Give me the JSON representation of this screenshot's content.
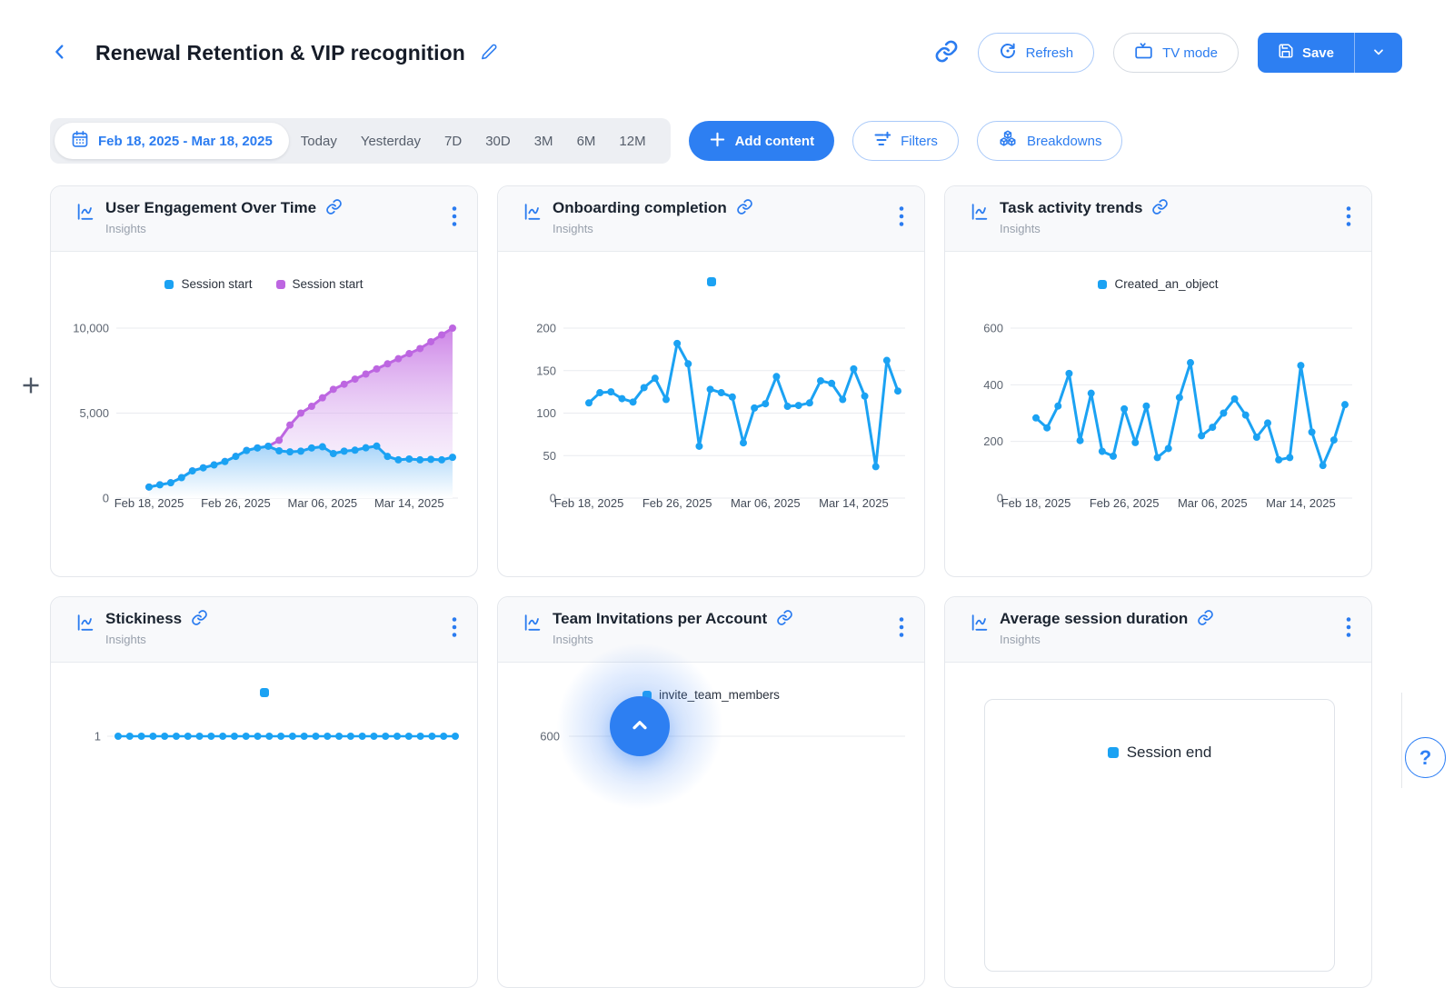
{
  "header": {
    "title": "Renewal Retention & VIP recognition",
    "refresh": "Refresh",
    "tv_mode": "TV mode",
    "save": "Save"
  },
  "toolbar": {
    "date_range": "Feb 18, 2025 - Mar 18, 2025",
    "presets": [
      "Today",
      "Yesterday",
      "7D",
      "30D",
      "3M",
      "6M",
      "12M"
    ],
    "add_content": "Add content",
    "filters": "Filters",
    "breakdowns": "Breakdowns"
  },
  "help": {
    "label": "?"
  },
  "colors": {
    "accent": "#2D7FF2",
    "chart_blue": "#1BA2F3",
    "chart_purple": "#BD66E1"
  },
  "cards": [
    {
      "title": "User Engagement Over Time",
      "subtitle": "Insights"
    },
    {
      "title": "Onboarding completion",
      "subtitle": "Insights"
    },
    {
      "title": "Task activity trends",
      "subtitle": "Insights"
    },
    {
      "title": "Stickiness",
      "subtitle": "Insights"
    },
    {
      "title": "Team Invitations per Account",
      "subtitle": "Insights"
    },
    {
      "title": "Average session duration",
      "subtitle": "Insights"
    }
  ],
  "chart_data": [
    {
      "type": "area",
      "title": "User Engagement Over Time",
      "n_points": 29,
      "x_tick_labels": [
        "Feb 18, 2025",
        "Feb 26, 2025",
        "Mar 06, 2025",
        "Mar 14, 2025"
      ],
      "x_tick_indices": [
        0,
        8,
        16,
        24
      ],
      "ylim": [
        0,
        10000
      ],
      "yticks": [
        {
          "v": 0,
          "label": "0"
        },
        {
          "v": 5000,
          "label": "5,000"
        },
        {
          "v": 10000,
          "label": "10,000"
        }
      ],
      "legend": [
        {
          "label": "Session start",
          "color": "#1BA2F3"
        },
        {
          "label": "Session start",
          "color": "#BD66E1"
        }
      ],
      "series": [
        {
          "name": "Session start",
          "color": "#BD66E1",
          "fill": "purple",
          "values": [
            650,
            780,
            900,
            1200,
            1600,
            1780,
            1950,
            2150,
            2450,
            2800,
            2950,
            3050,
            3400,
            4300,
            5000,
            5400,
            5900,
            6400,
            6700,
            7000,
            7300,
            7600,
            7900,
            8200,
            8500,
            8800,
            9200,
            9600,
            10000
          ]
        },
        {
          "name": "Session start",
          "color": "#1BA2F3",
          "fill": "blue",
          "values": [
            650,
            780,
            900,
            1200,
            1600,
            1780,
            1950,
            2150,
            2450,
            2800,
            2950,
            3050,
            2780,
            2720,
            2760,
            2950,
            3020,
            2620,
            2760,
            2820,
            2960,
            3060,
            2450,
            2250,
            2300,
            2250,
            2280,
            2250,
            2400
          ]
        }
      ]
    },
    {
      "type": "line",
      "title": "Onboarding completion",
      "n_points": 29,
      "x_tick_labels": [
        "Feb 18, 2025",
        "Feb 26, 2025",
        "Mar 06, 2025",
        "Mar 14, 2025"
      ],
      "x_tick_indices": [
        0,
        8,
        16,
        24
      ],
      "ylim": [
        0,
        200
      ],
      "yticks": [
        {
          "v": 0,
          "label": "0"
        },
        {
          "v": 50,
          "label": "50"
        },
        {
          "v": 100,
          "label": "100"
        },
        {
          "v": 150,
          "label": "150"
        },
        {
          "v": 200,
          "label": "200"
        }
      ],
      "legend": [
        {
          "label": "",
          "color": "#1BA2F3"
        }
      ],
      "series": [
        {
          "name": "",
          "color": "#1BA2F3",
          "values": [
            112,
            124,
            125,
            117,
            113,
            130,
            141,
            116,
            182,
            158,
            61,
            128,
            124,
            119,
            65,
            106,
            111,
            143,
            108,
            109,
            112,
            138,
            135,
            116,
            152,
            120,
            37,
            162,
            126
          ]
        }
      ]
    },
    {
      "type": "line",
      "title": "Task activity trends",
      "n_points": 29,
      "x_tick_labels": [
        "Feb 18, 2025",
        "Feb 26, 2025",
        "Mar 06, 2025",
        "Mar 14, 2025"
      ],
      "x_tick_indices": [
        0,
        8,
        16,
        24
      ],
      "ylim": [
        0,
        600
      ],
      "yticks": [
        {
          "v": 0,
          "label": "0"
        },
        {
          "v": 200,
          "label": "200"
        },
        {
          "v": 400,
          "label": "400"
        },
        {
          "v": 600,
          "label": "600"
        }
      ],
      "legend": [
        {
          "label": "Created_an_object",
          "color": "#1BA2F3"
        }
      ],
      "series": [
        {
          "name": "Created_an_object",
          "color": "#1BA2F3",
          "values": [
            283,
            248,
            325,
            440,
            203,
            370,
            165,
            148,
            315,
            196,
            325,
            143,
            175,
            355,
            478,
            220,
            250,
            300,
            350,
            293,
            215,
            265,
            135,
            143,
            468,
            233,
            115,
            205,
            330
          ]
        }
      ]
    },
    {
      "type": "flat",
      "title": "Stickiness",
      "n_points": 30,
      "value": 1,
      "ytick_label": "1",
      "color": "#1BA2F3",
      "legend": [
        {
          "label": "",
          "color": "#1BA2F3"
        }
      ]
    },
    {
      "type": "gridline",
      "title": "Team Invitations per Account",
      "ytick_label": "600",
      "legend": [
        {
          "label": "invite_team_members",
          "color": "#1BA2F3"
        }
      ]
    },
    {
      "type": "hidden",
      "title": "Average session duration",
      "legend": [
        {
          "label": "Session end",
          "color": "#1BA2F3"
        }
      ]
    }
  ]
}
